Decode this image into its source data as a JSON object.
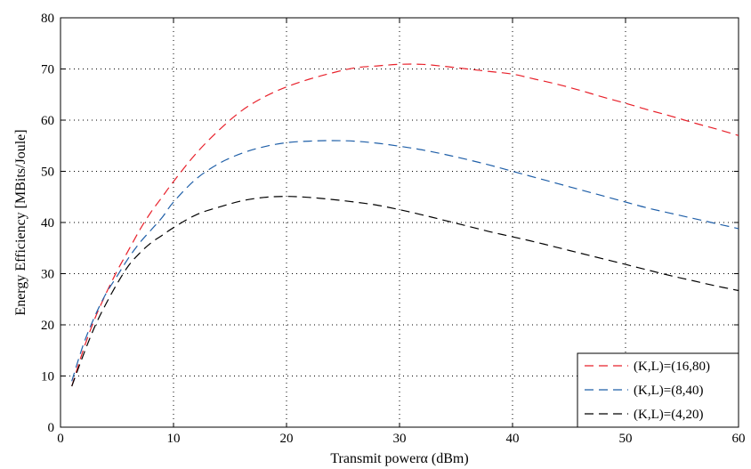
{
  "chart_data": {
    "type": "line",
    "xlabel": "Transmit powerα (dBm)",
    "ylabel": "Energy Efficiency [MBits/Joule]",
    "xlim": [
      0,
      60
    ],
    "ylim": [
      0,
      80
    ],
    "xticks": [
      0,
      10,
      20,
      30,
      40,
      50,
      60
    ],
    "yticks": [
      0,
      10,
      20,
      30,
      40,
      50,
      60,
      70,
      80
    ],
    "grid": true,
    "legend_position": "bottom-right",
    "x": [
      1,
      2,
      3,
      4,
      5,
      6,
      7,
      8,
      9,
      10,
      12,
      14,
      16,
      18,
      20,
      22,
      24,
      26,
      28,
      30,
      32,
      34,
      36,
      38,
      40,
      42,
      44,
      46,
      48,
      50,
      52,
      54,
      56,
      58,
      60
    ],
    "series": [
      {
        "name": "(K,L)=(16,80)",
        "color": "#e8202a",
        "values": [
          8,
          15,
          21,
          26,
          30.5,
          34.5,
          38.5,
          42,
          45,
          48,
          53.5,
          58,
          61.8,
          64.5,
          66.5,
          68,
          69.2,
          70.2,
          70.6,
          70.9,
          70.9,
          70.5,
          70,
          69.5,
          69,
          68,
          67,
          65.8,
          64.5,
          63.3,
          62,
          60.8,
          59.5,
          58.3,
          57
        ]
      },
      {
        "name": "(K,L)=(8,40)",
        "color": "#1f5fa8",
        "values": [
          9,
          16,
          21.5,
          26,
          29.5,
          33,
          36,
          38.5,
          41,
          44,
          48.5,
          51.5,
          53.5,
          54.8,
          55.6,
          55.9,
          56,
          55.9,
          55.5,
          54.9,
          54.2,
          53.3,
          52.3,
          51.2,
          50,
          48.8,
          47.6,
          46.4,
          45.2,
          44,
          42.8,
          41.8,
          40.8,
          39.8,
          38.8
        ]
      },
      {
        "name": "(K,L)=(4,20)",
        "color": "#000000",
        "values": [
          8,
          14,
          19.5,
          24,
          28,
          31.5,
          34,
          36,
          37.5,
          39,
          41.5,
          43,
          44.2,
          44.9,
          45.1,
          44.9,
          44.5,
          44,
          43.4,
          42.5,
          41.5,
          40.4,
          39.3,
          38.2,
          37.2,
          36.2,
          35.1,
          34,
          32.9,
          31.8,
          30.7,
          29.6,
          28.6,
          27.6,
          26.7
        ]
      }
    ]
  }
}
